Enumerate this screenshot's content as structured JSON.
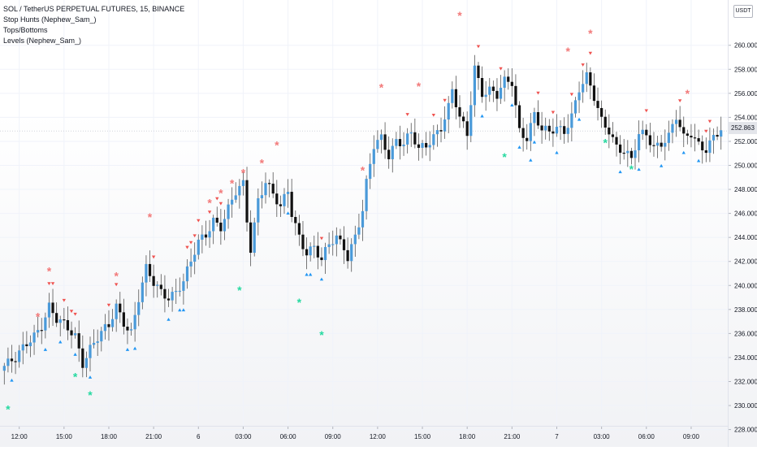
{
  "header": {
    "title": "SOL / TetherUS PERPETUAL FUTURES, 15, BINANCE",
    "indicators": [
      "Stop Hunts (Nephew_Sam_)",
      "Tops/Bottoms",
      "Levels (Nephew_Sam_)"
    ]
  },
  "currency_badge": "USDT",
  "last_price_label": "252.863",
  "colors": {
    "up": "#4a9ad9",
    "down": "#111111",
    "stop_hunt_top": "#ef5350",
    "stop_hunt_bottom": "#2196f3",
    "top_marker": "#f27a7a",
    "bottom_marker": "#26d9a0"
  },
  "chart_data": {
    "type": "candlestick",
    "symbol": "SOL/USDT Perpetual",
    "timeframe": "15",
    "exchange": "BINANCE",
    "ylim": [
      227.5,
      263.5
    ],
    "y_ticks": [
      "228.000",
      "230.000",
      "232.000",
      "234.000",
      "236.000",
      "238.000",
      "240.000",
      "242.000",
      "244.000",
      "246.000",
      "248.000",
      "250.000",
      "252.000",
      "254.000",
      "256.000",
      "258.000",
      "260.000"
    ],
    "x_ticks": [
      "12:00",
      "15:00",
      "18:00",
      "21:00",
      "6",
      "03:00",
      "06:00",
      "09:00",
      "12:00",
      "15:00",
      "18:00",
      "21:00",
      "7",
      "03:00",
      "06:00",
      "09:00"
    ],
    "x_tick_index": [
      4,
      16,
      28,
      40,
      52,
      64,
      76,
      88,
      100,
      112,
      124,
      136,
      148,
      160,
      172,
      184
    ],
    "last_price": 252.863,
    "close_path": [
      [
        0,
        233.3
      ],
      [
        3,
        233.7
      ],
      [
        6,
        235.2
      ],
      [
        10,
        236.8
      ],
      [
        12,
        238.2
      ],
      [
        14,
        237.0
      ],
      [
        16,
        236.6
      ],
      [
        19,
        235.9
      ],
      [
        21,
        233.7
      ],
      [
        23,
        234.8
      ],
      [
        26,
        235.9
      ],
      [
        28,
        236.5
      ],
      [
        30,
        238.3
      ],
      [
        32,
        237.1
      ],
      [
        34,
        236.2
      ],
      [
        36,
        238.9
      ],
      [
        38,
        241.2
      ],
      [
        40,
        240.1
      ],
      [
        42,
        239.5
      ],
      [
        44,
        239.2
      ],
      [
        46,
        239.6
      ],
      [
        48,
        240.3
      ],
      [
        50,
        241.8
      ],
      [
        52,
        243.5
      ],
      [
        54,
        244.3
      ],
      [
        56,
        245.6
      ],
      [
        58,
        245.0
      ],
      [
        60,
        246.3
      ],
      [
        62,
        247.6
      ],
      [
        64,
        248.3
      ],
      [
        65,
        245.4
      ],
      [
        66,
        243.1
      ],
      [
        68,
        247.3
      ],
      [
        70,
        248.8
      ],
      [
        72,
        247.5
      ],
      [
        74,
        246.3
      ],
      [
        76,
        247.8
      ],
      [
        77,
        246.0
      ],
      [
        79,
        244.2
      ],
      [
        81,
        242.9
      ],
      [
        83,
        243.2
      ],
      [
        85,
        241.9
      ],
      [
        87,
        243.3
      ],
      [
        89,
        244.0
      ],
      [
        91,
        243.4
      ],
      [
        92,
        242.5
      ],
      [
        94,
        244.2
      ],
      [
        96,
        246.1
      ],
      [
        97,
        248.3
      ],
      [
        99,
        251.5
      ],
      [
        101,
        252.3
      ],
      [
        103,
        251.0
      ],
      [
        105,
        252.2
      ],
      [
        107,
        251.8
      ],
      [
        109,
        252.5
      ],
      [
        111,
        251.2
      ],
      [
        113,
        251.7
      ],
      [
        115,
        252.6
      ],
      [
        117,
        253.3
      ],
      [
        119,
        254.8
      ],
      [
        120,
        256.1
      ],
      [
        122,
        253.8
      ],
      [
        124,
        252.5
      ],
      [
        126,
        258.3
      ],
      [
        128,
        256.2
      ],
      [
        130,
        256.3
      ],
      [
        132,
        255.7
      ],
      [
        134,
        256.8
      ],
      [
        136,
        256.9
      ],
      [
        138,
        253.0
      ],
      [
        140,
        252.5
      ],
      [
        142,
        254.3
      ],
      [
        144,
        252.8
      ],
      [
        146,
        252.6
      ],
      [
        148,
        253.1
      ],
      [
        150,
        253.0
      ],
      [
        152,
        254.3
      ],
      [
        154,
        256.4
      ],
      [
        156,
        257.2
      ],
      [
        158,
        255.5
      ],
      [
        160,
        253.7
      ],
      [
        162,
        253.1
      ],
      [
        164,
        251.7
      ],
      [
        166,
        251.2
      ],
      [
        168,
        250.3
      ],
      [
        170,
        252.4
      ],
      [
        172,
        252.6
      ],
      [
        174,
        251.7
      ],
      [
        176,
        252.0
      ],
      [
        178,
        252.4
      ],
      [
        180,
        253.9
      ],
      [
        182,
        252.1
      ],
      [
        184,
        252.7
      ],
      [
        186,
        251.9
      ],
      [
        188,
        251.5
      ],
      [
        190,
        252.3
      ],
      [
        192,
        252.8
      ]
    ],
    "candle_count": 193,
    "markers": [
      {
        "type": "bottom",
        "i": 1,
        "v": 229.7
      },
      {
        "type": "top",
        "i": 9,
        "v": 237.4
      },
      {
        "type": "top",
        "i": 12,
        "v": 241.2
      },
      {
        "type": "bottom",
        "i": 19,
        "v": 232.4
      },
      {
        "type": "bottom",
        "i": 23,
        "v": 230.9
      },
      {
        "type": "top",
        "i": 30,
        "v": 240.8
      },
      {
        "type": "top",
        "i": 39,
        "v": 245.7
      },
      {
        "type": "bottom",
        "i": 63,
        "v": 239.6
      },
      {
        "type": "top",
        "i": 55,
        "v": 246.9
      },
      {
        "type": "top",
        "i": 58,
        "v": 247.7
      },
      {
        "type": "top",
        "i": 61,
        "v": 248.5
      },
      {
        "type": "top",
        "i": 64,
        "v": 249.4
      },
      {
        "type": "top",
        "i": 69,
        "v": 250.2
      },
      {
        "type": "top",
        "i": 73,
        "v": 251.7
      },
      {
        "type": "bottom",
        "i": 79,
        "v": 238.6
      },
      {
        "type": "bottom",
        "i": 85,
        "v": 235.9
      },
      {
        "type": "top",
        "i": 96,
        "v": 249.6
      },
      {
        "type": "top",
        "i": 101,
        "v": 256.5
      },
      {
        "type": "top",
        "i": 111,
        "v": 256.6
      },
      {
        "type": "top",
        "i": 122,
        "v": 262.5
      },
      {
        "type": "bottom",
        "i": 134,
        "v": 250.7
      },
      {
        "type": "top",
        "i": 151,
        "v": 259.5
      },
      {
        "type": "top",
        "i": 157,
        "v": 261.0
      },
      {
        "type": "bottom",
        "i": 161,
        "v": 251.9
      },
      {
        "type": "bottom",
        "i": 168,
        "v": 249.7
      },
      {
        "type": "top",
        "i": 183,
        "v": 256.0
      }
    ],
    "stop_hunts_top": [
      12,
      13,
      16,
      18,
      19,
      28,
      30,
      40,
      49,
      50,
      51,
      52,
      55,
      57,
      58,
      85,
      108,
      115,
      118,
      127,
      133,
      143,
      147,
      152,
      155,
      157,
      172,
      181,
      188,
      189
    ],
    "stop_hunts_bottom": [
      2,
      11,
      15,
      19,
      23,
      33,
      35,
      44,
      47,
      48,
      76,
      81,
      82,
      85,
      128,
      136,
      138,
      141,
      142,
      148,
      154,
      165,
      170,
      176,
      182,
      186
    ]
  }
}
